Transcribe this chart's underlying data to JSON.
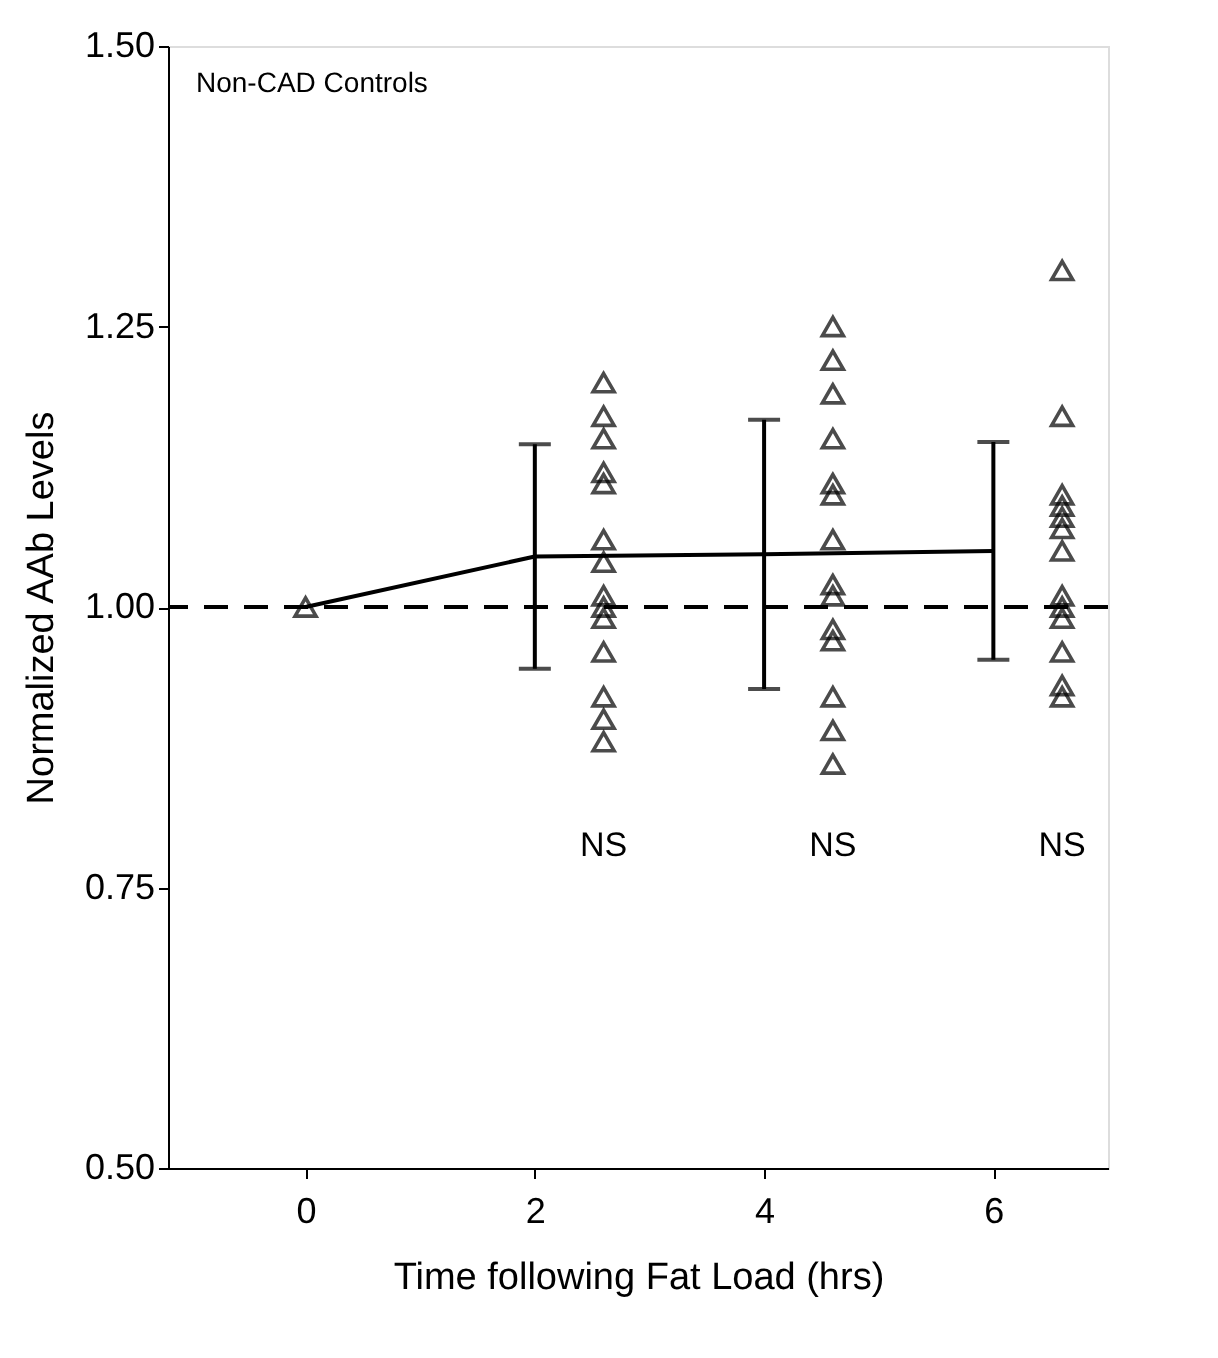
{
  "chart_data": {
    "type": "line",
    "xlabel": "Time following Fat Load (hrs)",
    "ylabel": "Normalized AAb Levels",
    "categories": [
      "0",
      "2",
      "4",
      "6"
    ],
    "ylim": [
      0.5,
      1.5
    ],
    "yticks": [
      {
        "value": 0.5,
        "label": "0.50"
      },
      {
        "value": 0.75,
        "label": "0.75"
      },
      {
        "value": 1.0,
        "label": "1.00"
      },
      {
        "value": 1.25,
        "label": "1.25"
      },
      {
        "value": 1.5,
        "label": "1.50"
      }
    ],
    "grid": false,
    "series": [
      {
        "color": "#000000",
        "marker": "none",
        "line_style": "solid",
        "values": [
          1.0,
          1.045,
          1.047,
          1.05
        ],
        "errors": [
          null,
          0.1,
          0.12,
          0.097
        ]
      },
      {
        "type": "scatter",
        "color": "#000000",
        "marker": "triangle",
        "x": [
          "0"
        ],
        "values": [
          1.0
        ]
      },
      {
        "type": "scatter",
        "color": "#000000",
        "marker": "triangle",
        "x": [
          "2",
          "2",
          "2",
          "2",
          "2",
          "2",
          "2",
          "2",
          "2",
          "2",
          "2",
          "2",
          "2",
          "2"
        ],
        "values": [
          1.2,
          1.17,
          1.15,
          1.12,
          1.11,
          1.06,
          1.04,
          1.01,
          1.0,
          0.99,
          0.96,
          0.92,
          0.9,
          0.88
        ]
      },
      {
        "type": "scatter",
        "color": "#000000",
        "marker": "triangle",
        "x": [
          "4",
          "4",
          "4",
          "4",
          "4",
          "4",
          "4",
          "4",
          "4",
          "4",
          "4",
          "4",
          "4",
          "4"
        ],
        "values": [
          1.25,
          1.22,
          1.19,
          1.15,
          1.11,
          1.1,
          1.06,
          1.02,
          1.01,
          0.98,
          0.97,
          0.92,
          0.89,
          0.86
        ]
      },
      {
        "type": "scatter",
        "color": "#000000",
        "marker": "triangle",
        "x": [
          "6",
          "6",
          "6",
          "6",
          "6",
          "6",
          "6",
          "6",
          "6",
          "6",
          "6",
          "6",
          "6"
        ],
        "values": [
          1.3,
          1.17,
          1.1,
          1.09,
          1.08,
          1.07,
          1.05,
          1.01,
          1.0,
          0.99,
          0.96,
          0.93,
          0.92
        ]
      }
    ],
    "ref_lines": [
      {
        "axis": "y",
        "value": 1.0,
        "color": "#000000",
        "line_style": "dashed"
      }
    ],
    "annotations": [
      "Non-CAD Controls",
      "NS",
      "NS",
      "NS"
    ]
  }
}
